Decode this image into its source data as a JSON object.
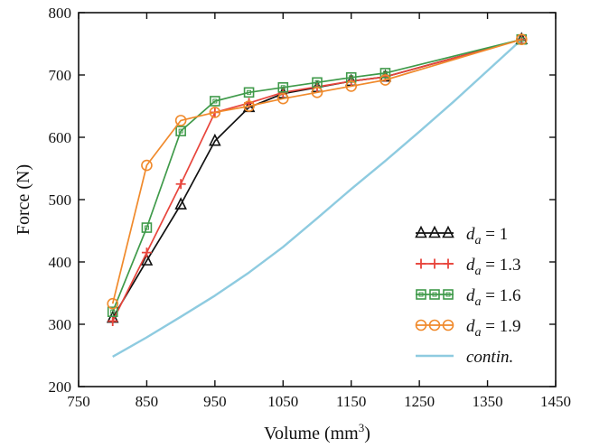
{
  "chart_data": {
    "type": "line",
    "title": "",
    "xlabel_main": "Volume (mm",
    "xlabel_sup": "3",
    "xlabel_close": ")",
    "ylabel": "Force (N)",
    "xlim": [
      750,
      1450
    ],
    "ylim": [
      200,
      800
    ],
    "xticks": [
      750,
      850,
      950,
      1050,
      1150,
      1250,
      1350,
      1450
    ],
    "yticks": [
      200,
      300,
      400,
      500,
      600,
      700,
      800
    ],
    "legend_position": "bottom-right",
    "series": [
      {
        "name": "d_a = 1",
        "name_base": "d",
        "name_sub": "a",
        "name_rest": " = 1",
        "marker": "triangle",
        "color": "#111111",
        "x": [
          800,
          850,
          900,
          950,
          1000,
          1050,
          1100,
          1150,
          1200,
          1400
        ],
        "y": [
          310,
          402,
          492,
          594,
          648,
          670,
          680,
          690,
          697,
          757
        ]
      },
      {
        "name": "d_a = 1.3",
        "name_base": "d",
        "name_sub": "a",
        "name_rest": " = 1.3",
        "marker": "plus",
        "color": "#e8453c",
        "x": [
          800,
          850,
          900,
          950,
          1000,
          1050,
          1100,
          1150,
          1200,
          1400
        ],
        "y": [
          305,
          415,
          525,
          640,
          655,
          672,
          681,
          690,
          697,
          757
        ]
      },
      {
        "name": "d_a = 1.6",
        "name_base": "d",
        "name_sub": "a",
        "name_rest": " = 1.6",
        "marker": "square",
        "color": "#3f9a4a",
        "x": [
          800,
          850,
          900,
          950,
          1000,
          1050,
          1100,
          1150,
          1200,
          1400
        ],
        "y": [
          320,
          455,
          610,
          658,
          672,
          680,
          688,
          696,
          703,
          757
        ]
      },
      {
        "name": "d_a = 1.9",
        "name_base": "d",
        "name_sub": "a",
        "name_rest": " = 1.9",
        "marker": "circle",
        "color": "#f08a2c",
        "x": [
          800,
          850,
          900,
          950,
          1000,
          1050,
          1100,
          1150,
          1200,
          1400
        ],
        "y": [
          333,
          555,
          627,
          640,
          650,
          662,
          672,
          682,
          692,
          757
        ]
      },
      {
        "name": "contin.",
        "name_base": "contin.",
        "name_sub": "",
        "name_rest": "",
        "marker": "none",
        "color": "#8ecbe0",
        "x": [
          800,
          850,
          900,
          950,
          1000,
          1050,
          1100,
          1150,
          1200,
          1250,
          1300,
          1350,
          1400
        ],
        "y": [
          248,
          279,
          312,
          346,
          383,
          424,
          470,
          517,
          562,
          609,
          657,
          707,
          757
        ]
      }
    ]
  }
}
